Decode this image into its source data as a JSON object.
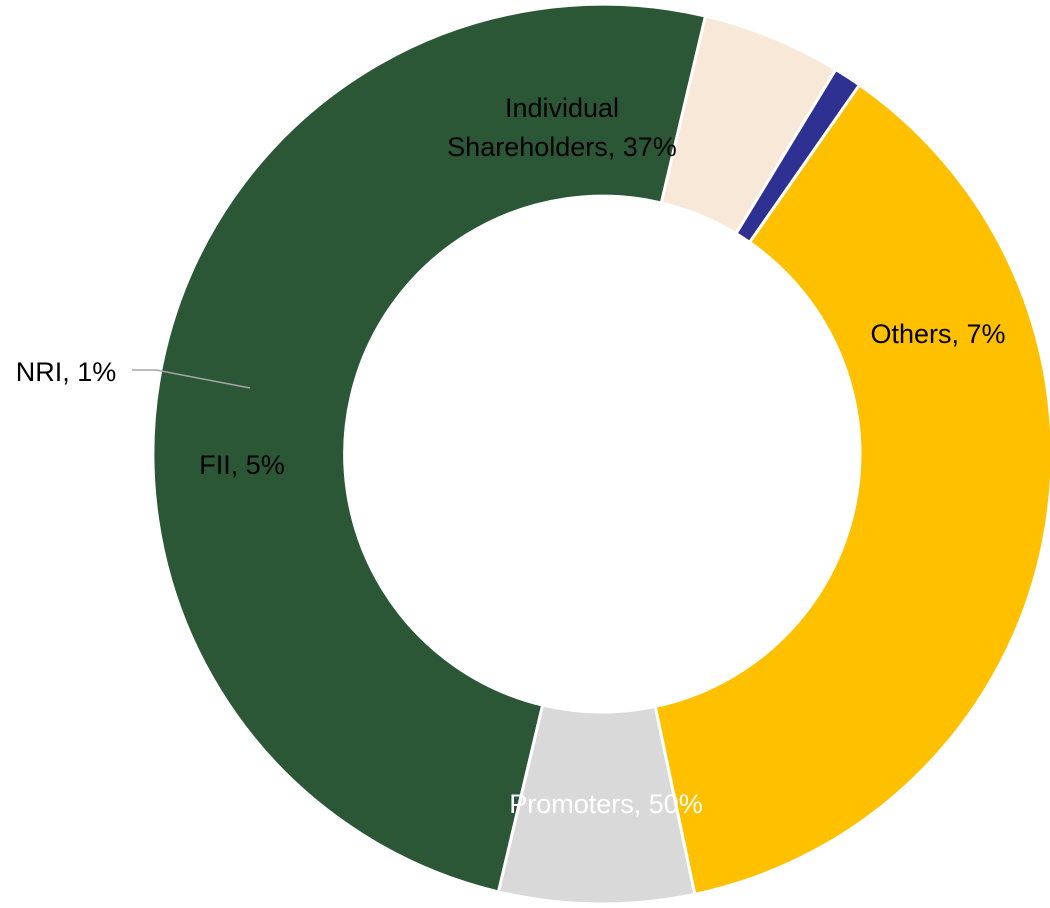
{
  "chart_data": {
    "type": "pie",
    "variant": "donut",
    "title": "",
    "slices": [
      {
        "label": "Promoters",
        "value": 50,
        "display": "Promoters, 50%",
        "color": "#2b5737",
        "text_color": "#ffffff"
      },
      {
        "label": "FII",
        "value": 5,
        "display": "FII, 5%",
        "color": "#f7e8d8",
        "text_color": "#000000"
      },
      {
        "label": "NRI",
        "value": 1,
        "display": "NRI, 1%",
        "color": "#2e3192",
        "text_color": "#000000"
      },
      {
        "label": "Individual Shareholders",
        "value": 37,
        "display_lines": [
          "Individual",
          "Shareholders, 37%"
        ],
        "color": "#ffc000",
        "text_color": "#000000"
      },
      {
        "label": "Others",
        "value": 7,
        "display": "Others, 7%",
        "color": "#d9d9d9",
        "text_color": "#000000"
      }
    ],
    "legend": "none",
    "leader_line_color": "#a6a6a6"
  }
}
